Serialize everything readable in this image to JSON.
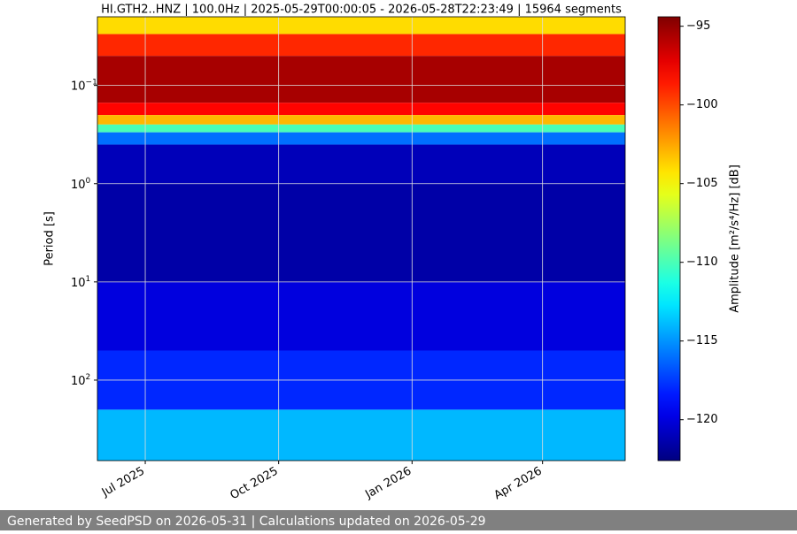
{
  "chart_data": {
    "type": "spectrogram",
    "title": "HI.GTH2..HNZ | 100.0Hz | 2025-05-29T00:00:05 - 2026-05-28T22:23:49 | 15964 segments",
    "ylabel": "Period [s]",
    "xlim": [
      "2025-05-29",
      "2026-05-28"
    ],
    "xticks": [
      {
        "value": "2025-07-01",
        "label": "Jul 2025"
      },
      {
        "value": "2025-10-01",
        "label": "Oct 2025"
      },
      {
        "value": "2026-01-01",
        "label": "Jan 2026"
      },
      {
        "value": "2026-04-01",
        "label": "Apr 2026"
      }
    ],
    "ylim": [
      0.02,
      660
    ],
    "ylog": true,
    "yinverted": true,
    "yticks": [
      {
        "value": 0.1,
        "label": "10",
        "exponent": "−1"
      },
      {
        "value": 1,
        "label": "10",
        "exponent": "0"
      },
      {
        "value": 10,
        "label": "10",
        "exponent": "1"
      },
      {
        "value": 100,
        "label": "10",
        "exponent": "2"
      }
    ],
    "grid": true,
    "colormap": "jet",
    "period_bins": [
      0.02,
      0.03,
      0.05,
      0.15,
      0.2,
      0.25,
      0.3,
      0.4,
      1,
      10,
      50,
      200,
      660
    ],
    "amplitude": [
      -104,
      -99,
      -95.5,
      -98,
      -103,
      -110,
      -116,
      -121,
      -121.5,
      -120,
      -118,
      -114
    ],
    "colorbar_label": "Amplitude [m²/s⁴/Hz] [dB]",
    "colorbar_lim": [
      -122.6,
      -94.4
    ],
    "colorbar_ticks": [
      {
        "value": -95,
        "label": "−95"
      },
      {
        "value": -100,
        "label": "−100"
      },
      {
        "value": -105,
        "label": "−105"
      },
      {
        "value": -110,
        "label": "−110"
      },
      {
        "value": -115,
        "label": "−115"
      },
      {
        "value": -120,
        "label": "−120"
      }
    ]
  },
  "footer": "Generated by SeedPSD on 2026-05-31 | Calculations updated on 2026-05-29"
}
